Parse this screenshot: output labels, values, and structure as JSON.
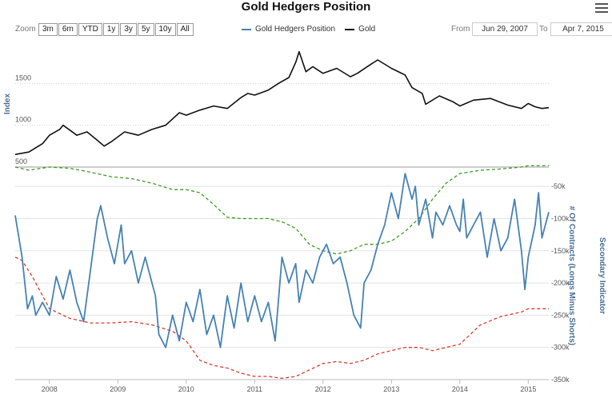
{
  "title": "Gold Hedgers Position",
  "zoom": {
    "label": "Zoom",
    "buttons": [
      "3m",
      "6m",
      "YTD",
      "1y",
      "3y",
      "5y",
      "10y",
      "All"
    ]
  },
  "range": {
    "from_label": "From",
    "from_value": "Jun 29, 2007",
    "to_label": "To",
    "to_value": "Apr 7, 2015"
  },
  "colors": {
    "hedgers": "#4682b4",
    "gold": "#111111",
    "green": "#3a9a1e",
    "red": "#d93a2b",
    "grid": "#cfcfcf"
  },
  "legend": [
    {
      "name": "Gold Hedgers Position",
      "color": "#4682b4"
    },
    {
      "name": "Gold",
      "color": "#111111"
    }
  ],
  "chart_data": [
    {
      "type": "line",
      "ylabel": "Index",
      "ylim": [
        500,
        2000
      ],
      "yticks": [
        "500",
        "1000",
        "1500"
      ],
      "ytick_values": [
        500,
        1000,
        1500
      ],
      "grid": true,
      "series": [
        {
          "name": "Gold",
          "x": [
            2007.5,
            2007.7,
            2007.9,
            2008.0,
            2008.15,
            2008.2,
            2008.4,
            2008.55,
            2008.7,
            2008.8,
            2008.9,
            2009.1,
            2009.3,
            2009.5,
            2009.7,
            2009.9,
            2010.0,
            2010.2,
            2010.4,
            2010.6,
            2010.8,
            2010.9,
            2011.0,
            2011.2,
            2011.35,
            2011.5,
            2011.6,
            2011.65,
            2011.75,
            2011.85,
            2012.0,
            2012.2,
            2012.4,
            2012.5,
            2012.7,
            2012.8,
            2013.0,
            2013.2,
            2013.3,
            2013.45,
            2013.5,
            2013.7,
            2013.9,
            2014.0,
            2014.2,
            2014.45,
            2014.7,
            2014.9,
            2015.0,
            2015.1,
            2015.2,
            2015.3
          ],
          "values": [
            650,
            680,
            780,
            880,
            950,
            1000,
            880,
            920,
            820,
            750,
            800,
            920,
            880,
            950,
            1000,
            1150,
            1120,
            1180,
            1230,
            1200,
            1330,
            1380,
            1360,
            1420,
            1500,
            1570,
            1750,
            1880,
            1640,
            1700,
            1620,
            1680,
            1580,
            1620,
            1730,
            1780,
            1680,
            1600,
            1450,
            1380,
            1250,
            1350,
            1280,
            1230,
            1300,
            1320,
            1240,
            1200,
            1260,
            1220,
            1200,
            1210
          ]
        }
      ]
    },
    {
      "type": "line",
      "ylabel": "# Of Contracts (Longs Minus Shorts)",
      "secondary_label": "Secondary Indicator",
      "ylim": [
        -350000,
        -20000
      ],
      "yticks": [
        "-50k",
        "-100k",
        "-150k",
        "-200k",
        "-250k",
        "-300k",
        "-350k"
      ],
      "ytick_values": [
        -50000,
        -100000,
        -150000,
        -200000,
        -250000,
        -300000,
        -350000
      ],
      "xticks": [
        "2008",
        "2009",
        "2010",
        "2011",
        "2012",
        "2013",
        "2014",
        "2015"
      ],
      "xtick_values": [
        2008,
        2009,
        2010,
        2011,
        2012,
        2013,
        2014,
        2015
      ],
      "xlim": [
        2007.5,
        2015.3
      ],
      "series": [
        {
          "name": "Gold Hedgers Position",
          "x": [
            2007.5,
            2007.6,
            2007.68,
            2007.75,
            2007.8,
            2007.9,
            2008.0,
            2008.1,
            2008.2,
            2008.3,
            2008.4,
            2008.5,
            2008.6,
            2008.7,
            2008.75,
            2008.85,
            2008.95,
            2009.05,
            2009.1,
            2009.2,
            2009.3,
            2009.4,
            2009.5,
            2009.55,
            2009.6,
            2009.7,
            2009.8,
            2009.9,
            2010.0,
            2010.1,
            2010.2,
            2010.3,
            2010.4,
            2010.5,
            2010.6,
            2010.7,
            2010.8,
            2010.9,
            2011.0,
            2011.1,
            2011.2,
            2011.3,
            2011.4,
            2011.5,
            2011.6,
            2011.65,
            2011.75,
            2011.85,
            2011.95,
            2012.05,
            2012.15,
            2012.25,
            2012.35,
            2012.45,
            2012.55,
            2012.6,
            2012.7,
            2012.8,
            2012.9,
            2013.0,
            2013.1,
            2013.2,
            2013.3,
            2013.35,
            2013.4,
            2013.5,
            2013.55,
            2013.6,
            2013.65,
            2013.75,
            2013.85,
            2013.95,
            2014.0,
            2014.05,
            2014.1,
            2014.2,
            2014.3,
            2014.4,
            2014.5,
            2014.6,
            2014.7,
            2014.8,
            2014.9,
            2014.95,
            2015.0,
            2015.1,
            2015.15,
            2015.2,
            2015.3
          ],
          "values": [
            -95000,
            -160000,
            -240000,
            -220000,
            -250000,
            -230000,
            -250000,
            -190000,
            -225000,
            -180000,
            -230000,
            -260000,
            -180000,
            -100000,
            -80000,
            -130000,
            -170000,
            -110000,
            -170000,
            -150000,
            -200000,
            -160000,
            -200000,
            -220000,
            -280000,
            -300000,
            -250000,
            -290000,
            -230000,
            -260000,
            -210000,
            -280000,
            -250000,
            -300000,
            -220000,
            -270000,
            -200000,
            -260000,
            -220000,
            -260000,
            -230000,
            -290000,
            -160000,
            -200000,
            -170000,
            -230000,
            -180000,
            -200000,
            -160000,
            -140000,
            -170000,
            -160000,
            -200000,
            -250000,
            -270000,
            -200000,
            -180000,
            -140000,
            -110000,
            -60000,
            -100000,
            -30000,
            -70000,
            -50000,
            -110000,
            -70000,
            -100000,
            -130000,
            -90000,
            -110000,
            -80000,
            -110000,
            -120000,
            -70000,
            -130000,
            -110000,
            -90000,
            -160000,
            -100000,
            -150000,
            -130000,
            -70000,
            -150000,
            -210000,
            -160000,
            -110000,
            -60000,
            -130000,
            -90000
          ]
        },
        {
          "name": "",
          "color_key": "green",
          "x": [
            2007.5,
            2007.7,
            2008.0,
            2008.3,
            2008.6,
            2008.9,
            2009.2,
            2009.5,
            2009.8,
            2010.0,
            2010.2,
            2010.4,
            2010.6,
            2010.8,
            2011.0,
            2011.2,
            2011.4,
            2011.6,
            2011.8,
            2012.0,
            2012.2,
            2012.4,
            2012.6,
            2012.8,
            2013.0,
            2013.2,
            2013.4,
            2013.6,
            2013.8,
            2014.0,
            2014.3,
            2014.6,
            2014.9,
            2015.0,
            2015.3
          ],
          "values": [
            -20000,
            -25000,
            -20000,
            -22000,
            -28000,
            -35000,
            -38000,
            -45000,
            -55000,
            -55000,
            -60000,
            -78000,
            -98000,
            -100000,
            -100000,
            -100000,
            -105000,
            -115000,
            -140000,
            -150000,
            -155000,
            -150000,
            -140000,
            -140000,
            -135000,
            -120000,
            -100000,
            -70000,
            -45000,
            -30000,
            -25000,
            -23000,
            -20000,
            -18000,
            -18000
          ]
        },
        {
          "name": "",
          "color_key": "red",
          "x": [
            2007.5,
            2007.6,
            2007.75,
            2008.0,
            2008.3,
            2008.6,
            2008.9,
            2009.2,
            2009.5,
            2009.8,
            2010.0,
            2010.2,
            2010.4,
            2010.6,
            2010.8,
            2011.0,
            2011.2,
            2011.4,
            2011.6,
            2011.8,
            2012.0,
            2012.2,
            2012.4,
            2012.6,
            2012.8,
            2013.0,
            2013.2,
            2013.4,
            2013.6,
            2013.8,
            2014.0,
            2014.3,
            2014.6,
            2014.9,
            2015.0,
            2015.3
          ],
          "values": [
            -160000,
            -165000,
            -190000,
            -240000,
            -255000,
            -262000,
            -262000,
            -260000,
            -265000,
            -275000,
            -290000,
            -320000,
            -328000,
            -332000,
            -340000,
            -345000,
            -345000,
            -348000,
            -345000,
            -335000,
            -325000,
            -322000,
            -325000,
            -320000,
            -310000,
            -305000,
            -300000,
            -300000,
            -305000,
            -300000,
            -295000,
            -265000,
            -252000,
            -245000,
            -240000,
            -240000
          ]
        }
      ]
    }
  ]
}
